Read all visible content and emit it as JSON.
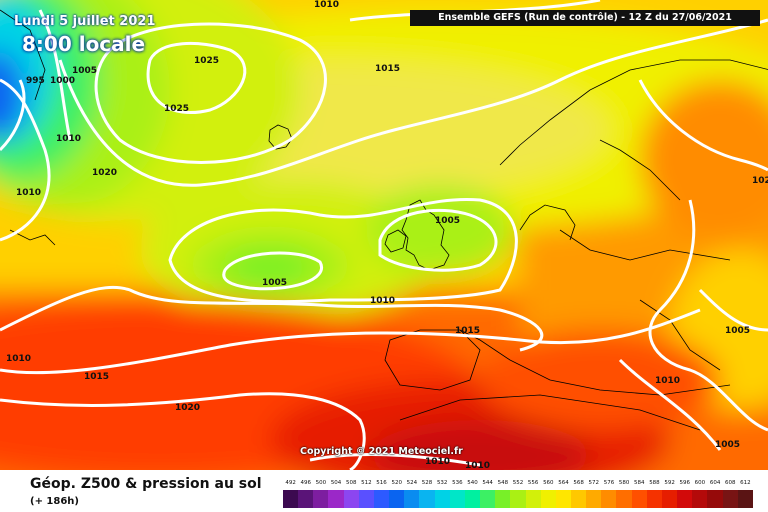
{
  "header": {
    "date": "Lundi 5 juillet 2021",
    "local_time": "8:00 locale",
    "run_info": "Ensemble GEFS  (Run de contrôle)  -  12 Z du 27/06/2021"
  },
  "copyright": "Copyright © 2021 Meteociel.fr",
  "footer": {
    "title": "Géop. Z500 & pression au sol",
    "forecast_step": "(+ 186h)"
  },
  "isobar_labels": [
    {
      "id": "top-1010",
      "text": "1010"
    },
    {
      "id": "nw-1005",
      "text": "1005"
    },
    {
      "id": "nw-995",
      "text": "995"
    },
    {
      "id": "nw-1000",
      "text": "1000"
    },
    {
      "id": "greenland-1025a",
      "text": "1025"
    },
    {
      "id": "greenland-1025b",
      "text": "1025"
    },
    {
      "id": "west-1010",
      "text": "1010"
    },
    {
      "id": "west-1020",
      "text": "1020"
    },
    {
      "id": "left-1010",
      "text": "1010"
    },
    {
      "id": "north-1015",
      "text": "1015"
    },
    {
      "id": "atl-1005",
      "text": "1005"
    },
    {
      "id": "uk-1005",
      "text": "1005"
    },
    {
      "id": "mid-1010",
      "text": "1010"
    },
    {
      "id": "bay-1015",
      "text": "1015"
    },
    {
      "id": "sw-1010",
      "text": "1010"
    },
    {
      "id": "sw-1015",
      "text": "1015"
    },
    {
      "id": "sw-1020",
      "text": "1020"
    },
    {
      "id": "east-102",
      "text": "102"
    },
    {
      "id": "east-1005",
      "text": "1005"
    },
    {
      "id": "east-1010",
      "text": "1010"
    },
    {
      "id": "se-1005",
      "text": "1005"
    },
    {
      "id": "south-1010a",
      "text": "1010"
    },
    {
      "id": "south-1010b",
      "text": "1010"
    }
  ],
  "colorscale": {
    "labels": [
      "492",
      "496",
      "500",
      "504",
      "508",
      "512",
      "516",
      "520",
      "524",
      "528",
      "532",
      "536",
      "540",
      "544",
      "548",
      "552",
      "556",
      "560",
      "564",
      "568",
      "572",
      "576",
      "580",
      "584",
      "588",
      "592",
      "596",
      "600",
      "604",
      "608",
      "612"
    ],
    "colors": [
      "#3c0a50",
      "#5a1478",
      "#7d1ea0",
      "#9b28c8",
      "#8c46f0",
      "#5a50ff",
      "#2d5aff",
      "#0a64f0",
      "#0a8cf0",
      "#0ab4f0",
      "#00d2e6",
      "#00e6c8",
      "#00f0a0",
      "#3cf064",
      "#78f028",
      "#aaf014",
      "#d2f00a",
      "#f0f000",
      "#ffe600",
      "#ffc800",
      "#ffaa00",
      "#ff8c00",
      "#ff6e00",
      "#ff5000",
      "#f53200",
      "#e61e00",
      "#d20a0a",
      "#b40a0a",
      "#960a0a",
      "#781414",
      "#5a1414"
    ]
  }
}
